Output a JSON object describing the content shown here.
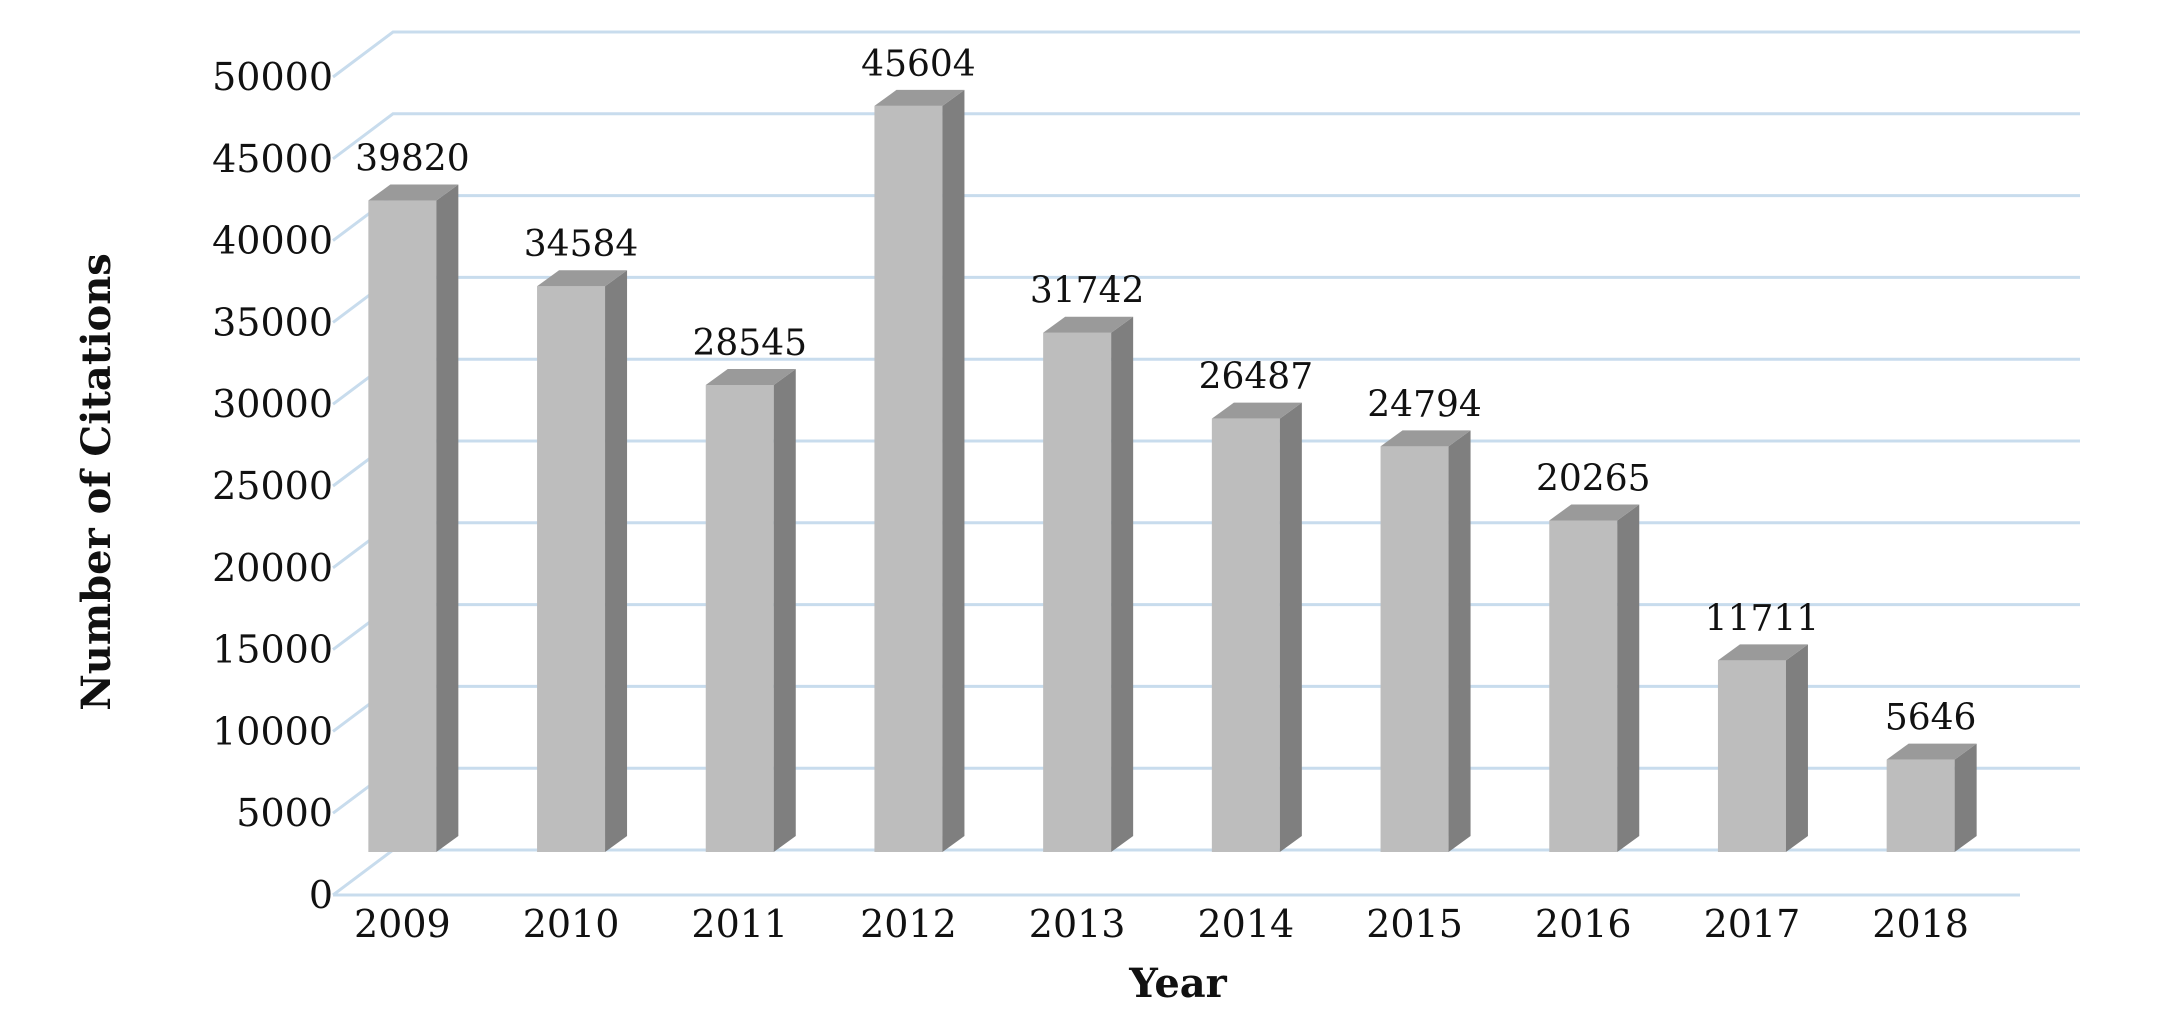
{
  "chart_data": {
    "type": "bar",
    "categories": [
      "2009",
      "2010",
      "2011",
      "2012",
      "2013",
      "2014",
      "2015",
      "2016",
      "2017",
      "2018"
    ],
    "values": [
      39820,
      34584,
      28545,
      45604,
      31742,
      26487,
      24794,
      20265,
      11711,
      5646
    ],
    "data_labels": [
      "39820",
      "34584",
      "28545",
      "45604",
      "31742",
      "26487",
      "24794",
      "20265",
      "11711",
      "5646"
    ],
    "xlabel": "Year",
    "ylabel": "Number of Citations",
    "ylim": [
      0,
      50000
    ],
    "yticks": [
      "0",
      "5000",
      "10000",
      "15000",
      "20000",
      "25000",
      "30000",
      "35000",
      "40000",
      "45000",
      "50000"
    ],
    "grid": true,
    "style": "3d-column",
    "colors": {
      "bar_front": "#bdbdbd",
      "bar_side": "#7f7f7f",
      "bar_top": "#9a9a9a",
      "grid": "#c8dced"
    }
  }
}
